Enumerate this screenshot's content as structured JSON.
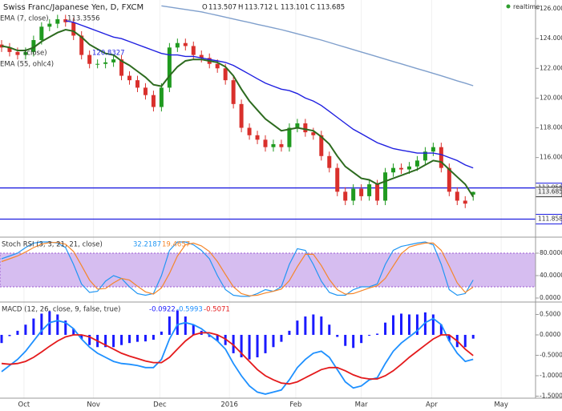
{
  "realtime": "realtime",
  "chart_data": [
    {
      "type": "candlestick",
      "title": "Swiss Franc/Japanese Yen, D, FXCM",
      "ohlc_labels": [
        "O",
        "H",
        "L",
        "C"
      ],
      "xlim": [
        -0.2,
        66.8
      ],
      "xticks": [
        {
          "value": 2.8,
          "label": "Oct"
        },
        {
          "value": 11.5,
          "label": "Nov"
        },
        {
          "value": 19.8,
          "label": "Dec"
        },
        {
          "value": 28.5,
          "label": "2016"
        },
        {
          "value": 36.8,
          "label": "Feb"
        },
        {
          "value": 45,
          "label": "Mar"
        },
        {
          "value": 53.8,
          "label": "Apr"
        },
        {
          "value": 62.5,
          "label": "May"
        }
      ],
      "ylim": [
        110.7,
        126.38
      ],
      "yticks": [
        {
          "value": 116,
          "label": "116.000"
        },
        {
          "value": 118,
          "label": "118.000"
        },
        {
          "value": 120,
          "label": "120.000"
        },
        {
          "value": 122,
          "label": "122.000"
        },
        {
          "value": 124,
          "label": "124.000"
        },
        {
          "value": 126,
          "label": "126.000"
        }
      ],
      "levels": [
        113.956,
        111.858
      ],
      "level_color": "#1f1fe0",
      "up_color": "#1f9a1f",
      "down_color": "#d9302c",
      "open": [
        123.6,
        123.4,
        123.1,
        122.9,
        123.1,
        123.9,
        124.8,
        125.0,
        125.3,
        125.1,
        124.2,
        122.9,
        122.3,
        122.3,
        122.4,
        122.6,
        121.5,
        121.2,
        120.7,
        120.2,
        119.4,
        120.7,
        123.4,
        123.7,
        123.5,
        122.9,
        122.7,
        122.3,
        122.0,
        121.2,
        119.6,
        118.0,
        117.5,
        117.2,
        116.7,
        116.9,
        116.7,
        118.0,
        118.3,
        117.7,
        117.5,
        116.1,
        115.3,
        113.7,
        113.1,
        113.9,
        113.4,
        114.2,
        113.1,
        115.0,
        115.3,
        115.2,
        115.4,
        115.8,
        116.4,
        116.7,
        115.3,
        113.7,
        113.1,
        113.507
      ],
      "high": [
        123.9,
        123.7,
        123.4,
        123.4,
        124.2,
        125.1,
        125.3,
        125.6,
        125.6,
        125.4,
        124.5,
        123.2,
        122.6,
        122.7,
        122.9,
        122.9,
        121.8,
        121.5,
        121.0,
        120.5,
        121.0,
        123.7,
        124.0,
        124.0,
        123.8,
        123.2,
        123.0,
        122.6,
        122.3,
        121.5,
        119.9,
        118.3,
        117.8,
        117.5,
        117.2,
        117.2,
        118.3,
        118.6,
        118.6,
        118.0,
        117.8,
        116.4,
        115.6,
        114.0,
        114.2,
        114.2,
        114.5,
        114.5,
        115.3,
        115.6,
        115.6,
        115.7,
        116.1,
        116.7,
        117.0,
        117.0,
        115.6,
        114.0,
        113.4,
        113.712
      ],
      "low": [
        123.1,
        122.8,
        122.6,
        122.6,
        122.8,
        123.6,
        124.5,
        124.7,
        124.8,
        123.9,
        122.6,
        122.0,
        122.0,
        122.0,
        122.1,
        121.2,
        120.9,
        120.4,
        119.9,
        119.1,
        119.1,
        120.4,
        123.1,
        123.2,
        122.6,
        122.4,
        122.0,
        121.7,
        120.9,
        119.3,
        117.7,
        117.2,
        116.9,
        116.4,
        116.4,
        116.4,
        116.4,
        117.7,
        117.4,
        117.2,
        115.8,
        115.0,
        113.4,
        112.8,
        112.8,
        113.1,
        113.1,
        112.8,
        112.8,
        114.7,
        114.9,
        114.9,
        115.1,
        115.5,
        116.1,
        115.0,
        113.4,
        112.8,
        112.6,
        113.101
      ],
      "close": [
        123.4,
        123.1,
        122.9,
        123.1,
        123.9,
        124.8,
        125.0,
        125.3,
        125.1,
        124.2,
        122.9,
        122.3,
        122.3,
        122.4,
        122.6,
        121.5,
        121.2,
        120.7,
        120.2,
        119.4,
        120.7,
        123.4,
        123.7,
        123.5,
        122.9,
        122.7,
        122.3,
        122.0,
        121.2,
        119.6,
        118.0,
        117.5,
        117.2,
        116.7,
        116.9,
        116.7,
        118.0,
        118.3,
        117.7,
        117.5,
        116.1,
        115.3,
        113.7,
        113.1,
        113.9,
        113.4,
        114.2,
        113.1,
        115.0,
        115.3,
        115.2,
        115.4,
        115.8,
        116.4,
        116.7,
        115.3,
        113.7,
        113.1,
        112.9,
        113.685
      ],
      "series": [
        {
          "name": "EMA (7, close)",
          "color": "#2d6b1f",
          "values": [
            123.5,
            123.4,
            123.2,
            123.2,
            123.4,
            123.8,
            124.1,
            124.4,
            124.6,
            124.5,
            124.1,
            123.6,
            123.3,
            123.0,
            122.9,
            122.5,
            122.2,
            121.8,
            121.4,
            120.9,
            120.8,
            121.5,
            122.1,
            122.5,
            122.6,
            122.6,
            122.5,
            122.4,
            122.1,
            121.5,
            120.6,
            119.8,
            119.2,
            118.6,
            118.2,
            117.8,
            117.9,
            118.0,
            117.9,
            117.8,
            117.4,
            116.9,
            116.1,
            115.4,
            115.0,
            114.6,
            114.5,
            114.2,
            114.4,
            114.6,
            114.8,
            115.0,
            115.2,
            115.5,
            115.8,
            115.7,
            115.2,
            114.7,
            114.2,
            113.3556
          ]
        },
        {
          "name": "(close)",
          "color": "#7f9fcc",
          "values": [
            null,
            null,
            null,
            null,
            null,
            null,
            null,
            null,
            null,
            null,
            null,
            null,
            null,
            null,
            null,
            null,
            null,
            null,
            null,
            null,
            126.2,
            126.12,
            126.04,
            125.96,
            125.88,
            125.8,
            125.68,
            125.56,
            125.44,
            125.32,
            125.2,
            125.08,
            124.96,
            124.84,
            124.72,
            124.6,
            124.46,
            124.32,
            124.18,
            124.04,
            123.9,
            123.74,
            123.58,
            123.42,
            123.26,
            123.1,
            122.94,
            122.78,
            122.62,
            122.46,
            122.3,
            122.14,
            121.98,
            121.82,
            121.66,
            121.5,
            121.33,
            121.16,
            121.0,
            120.8327
          ]
        },
        {
          "name": "EMA (55, ohlc4)",
          "color": "#1f1fe0",
          "values": [
            null,
            null,
            null,
            null,
            null,
            null,
            null,
            null,
            125.2,
            125.1,
            124.9,
            124.7,
            124.5,
            124.3,
            124.1,
            124.0,
            123.8,
            123.6,
            123.4,
            123.2,
            123.0,
            122.9,
            122.9,
            122.8,
            122.8,
            122.7,
            122.6,
            122.5,
            122.4,
            122.2,
            121.9,
            121.6,
            121.3,
            121.0,
            120.8,
            120.6,
            120.5,
            120.3,
            120.0,
            119.8,
            119.5,
            119.1,
            118.7,
            118.3,
            117.9,
            117.6,
            117.3,
            117.0,
            116.8,
            116.6,
            116.5,
            116.4,
            116.3,
            116.3,
            116.3,
            116.2,
            116.0,
            115.8,
            115.5,
            115.3
          ]
        }
      ]
    },
    {
      "type": "oscillator",
      "title": "Stoch RSI (3, 3, 21, 21, close)",
      "ylim": [
        -5.7,
        105.7
      ],
      "band": [
        20,
        80
      ],
      "band_color": "#d6bdf0",
      "yticks": [
        {
          "value": 0,
          "label": "0.0000"
        },
        {
          "value": 40,
          "label": "40.0000"
        },
        {
          "value": 80,
          "label": "80.0000"
        }
      ],
      "series": [
        {
          "color": "#2196f3",
          "values": [
            70,
            75,
            80,
            90,
            98,
            100,
            100,
            98,
            90,
            60,
            25,
            10,
            12,
            30,
            40,
            35,
            20,
            8,
            5,
            8,
            40,
            85,
            100,
            100,
            95,
            85,
            70,
            40,
            15,
            5,
            3,
            3,
            8,
            15,
            12,
            20,
            60,
            88,
            85,
            60,
            30,
            10,
            5,
            5,
            15,
            20,
            20,
            25,
            60,
            85,
            92,
            95,
            98,
            100,
            95,
            60,
            15,
            5,
            8,
            32.2187
          ]
        },
        {
          "color": "#f5862a",
          "values": [
            65,
            70,
            75,
            82,
            90,
            96,
            99,
            99,
            96,
            83,
            58,
            32,
            16,
            17,
            27,
            35,
            32,
            21,
            11,
            7,
            18,
            44,
            75,
            95,
            98,
            93,
            83,
            65,
            42,
            20,
            8,
            4,
            5,
            9,
            12,
            16,
            31,
            56,
            78,
            78,
            58,
            33,
            15,
            7,
            8,
            13,
            18,
            22,
            35,
            57,
            79,
            91,
            95,
            98,
            98,
            85,
            57,
            27,
            10,
            19.4657
          ]
        }
      ]
    },
    {
      "type": "macd",
      "title": "MACD (12, 26, close, 9, false, true)",
      "ylim": [
        -1.55,
        0.784
      ],
      "yticks": [
        {
          "value": -1.5,
          "label": "-1.5000"
        },
        {
          "value": -1,
          "label": "-1.0000"
        },
        {
          "value": -0.5,
          "label": "-0.5000"
        },
        {
          "value": 0,
          "label": "0.0000"
        },
        {
          "value": 0.5,
          "label": "0.5000"
        }
      ],
      "histogram": {
        "color": "#1a1aff",
        "values": [
          -0.2,
          -0.03,
          0.1,
          0.25,
          0.4,
          0.52,
          0.58,
          0.5,
          0.35,
          0.15,
          -0.1,
          -0.25,
          -0.3,
          -0.3,
          -0.3,
          -0.25,
          -0.2,
          -0.17,
          -0.16,
          -0.12,
          0.08,
          0.45,
          0.6,
          0.45,
          0.25,
          0.1,
          -0.05,
          -0.15,
          -0.25,
          -0.45,
          -0.55,
          -0.6,
          -0.55,
          -0.45,
          -0.3,
          -0.17,
          0.1,
          0.35,
          0.45,
          0.5,
          0.45,
          0.25,
          -0.05,
          -0.27,
          -0.32,
          -0.2,
          -0.02,
          0.03,
          0.3,
          0.48,
          0.52,
          0.5,
          0.5,
          0.55,
          0.5,
          0.25,
          -0.15,
          -0.3,
          -0.3,
          -0.0922
        ]
      },
      "series": [
        {
          "color": "#1e90ff",
          "values": [
            -0.9,
            -0.75,
            -0.6,
            -0.4,
            -0.15,
            0.1,
            0.3,
            0.35,
            0.3,
            0.15,
            -0.1,
            -0.3,
            -0.45,
            -0.55,
            -0.65,
            -0.7,
            -0.72,
            -0.75,
            -0.8,
            -0.8,
            -0.6,
            -0.1,
            0.25,
            0.3,
            0.25,
            0.15,
            0.0,
            -0.15,
            -0.35,
            -0.7,
            -1.0,
            -1.25,
            -1.4,
            -1.45,
            -1.4,
            -1.35,
            -1.1,
            -0.8,
            -0.6,
            -0.45,
            -0.4,
            -0.55,
            -0.85,
            -1.15,
            -1.3,
            -1.25,
            -1.1,
            -1.05,
            -0.7,
            -0.4,
            -0.2,
            -0.05,
            0.1,
            0.3,
            0.4,
            0.25,
            -0.15,
            -0.45,
            -0.65,
            -0.5993
          ]
        },
        {
          "color": "#e41a1c",
          "values": [
            -0.7,
            -0.72,
            -0.7,
            -0.65,
            -0.55,
            -0.42,
            -0.28,
            -0.15,
            -0.05,
            0.0,
            0.0,
            -0.05,
            -0.15,
            -0.25,
            -0.35,
            -0.45,
            -0.52,
            -0.58,
            -0.64,
            -0.68,
            -0.68,
            -0.55,
            -0.35,
            -0.15,
            0.0,
            0.05,
            0.05,
            0.0,
            -0.1,
            -0.25,
            -0.45,
            -0.65,
            -0.85,
            -1.0,
            -1.1,
            -1.18,
            -1.2,
            -1.15,
            -1.05,
            -0.95,
            -0.85,
            -0.8,
            -0.8,
            -0.88,
            -0.98,
            -1.05,
            -1.08,
            -1.08,
            -1.0,
            -0.88,
            -0.72,
            -0.55,
            -0.4,
            -0.25,
            -0.1,
            0.0,
            0.0,
            -0.15,
            -0.35,
            -0.5071
          ]
        }
      ]
    }
  ]
}
